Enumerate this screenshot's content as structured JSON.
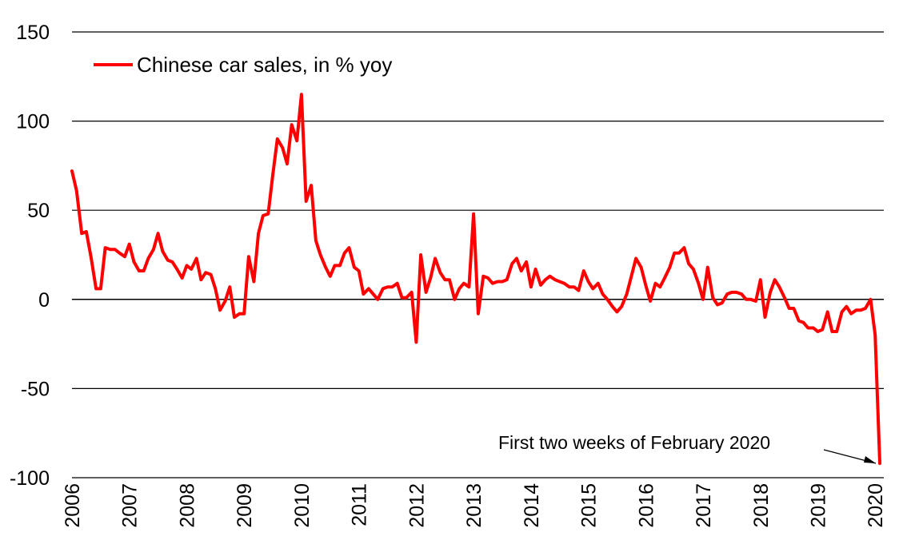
{
  "chart_data": {
    "type": "line",
    "ylim": [
      -100,
      150
    ],
    "yticks": [
      "150",
      "100",
      "50",
      "0",
      "-50",
      "-100"
    ],
    "ytick_values": [
      150,
      100,
      50,
      0,
      -50,
      -100
    ],
    "xticks": [
      "2006",
      "2007",
      "2008",
      "2009",
      "2010",
      "2011",
      "2012",
      "2013",
      "2014",
      "2015",
      "2016",
      "2017",
      "2018",
      "2019",
      "2020"
    ],
    "xtick_values": [
      2006,
      2007,
      2008,
      2009,
      2010,
      2011,
      2012,
      2013,
      2014,
      2015,
      2016,
      2017,
      2018,
      2019,
      2020
    ],
    "xlim": [
      2006,
      2020.15
    ],
    "grid": "horizontal",
    "legend_position": "top-left",
    "series": [
      {
        "name": "Chinese car sales, in % yoy",
        "color": "#ff0000",
        "x": [
          2006.0,
          2006.08,
          2006.17,
          2006.25,
          2006.33,
          2006.42,
          2006.5,
          2006.58,
          2006.67,
          2006.75,
          2006.83,
          2006.92,
          2007.0,
          2007.08,
          2007.17,
          2007.25,
          2007.33,
          2007.42,
          2007.5,
          2007.58,
          2007.67,
          2007.75,
          2007.83,
          2007.92,
          2008.0,
          2008.08,
          2008.17,
          2008.25,
          2008.33,
          2008.42,
          2008.5,
          2008.58,
          2008.67,
          2008.75,
          2008.83,
          2008.92,
          2009.0,
          2009.08,
          2009.17,
          2009.25,
          2009.33,
          2009.42,
          2009.5,
          2009.58,
          2009.67,
          2009.75,
          2009.83,
          2009.92,
          2010.0,
          2010.08,
          2010.17,
          2010.25,
          2010.33,
          2010.42,
          2010.5,
          2010.58,
          2010.67,
          2010.75,
          2010.83,
          2010.92,
          2011.0,
          2011.08,
          2011.17,
          2011.25,
          2011.33,
          2011.42,
          2011.5,
          2011.58,
          2011.67,
          2011.75,
          2011.83,
          2011.92,
          2012.0,
          2012.08,
          2012.17,
          2012.25,
          2012.33,
          2012.42,
          2012.5,
          2012.58,
          2012.67,
          2012.75,
          2012.83,
          2012.92,
          2013.0,
          2013.08,
          2013.17,
          2013.25,
          2013.33,
          2013.42,
          2013.5,
          2013.58,
          2013.67,
          2013.75,
          2013.83,
          2013.92,
          2014.0,
          2014.08,
          2014.17,
          2014.25,
          2014.33,
          2014.42,
          2014.5,
          2014.58,
          2014.67,
          2014.75,
          2014.83,
          2014.92,
          2015.0,
          2015.08,
          2015.17,
          2015.25,
          2015.33,
          2015.42,
          2015.5,
          2015.58,
          2015.67,
          2015.75,
          2015.83,
          2015.92,
          2016.0,
          2016.08,
          2016.17,
          2016.25,
          2016.33,
          2016.42,
          2016.5,
          2016.58,
          2016.67,
          2016.75,
          2016.83,
          2016.92,
          2017.0,
          2017.08,
          2017.17,
          2017.25,
          2017.33,
          2017.42,
          2017.5,
          2017.58,
          2017.67,
          2017.75,
          2017.83,
          2017.92,
          2018.0,
          2018.08,
          2018.17,
          2018.25,
          2018.33,
          2018.42,
          2018.5,
          2018.58,
          2018.67,
          2018.75,
          2018.83,
          2018.92,
          2019.0,
          2019.08,
          2019.17,
          2019.25,
          2019.33,
          2019.42,
          2019.5,
          2019.58,
          2019.67,
          2019.75,
          2019.83,
          2019.92,
          2020.0,
          2020.08
        ],
        "y": [
          72,
          61,
          37,
          38,
          24,
          6,
          6,
          29,
          28,
          28,
          26,
          24,
          31,
          21,
          16,
          16,
          23,
          28,
          37,
          27,
          22,
          21,
          17,
          12,
          19,
          17,
          23,
          11,
          15,
          14,
          6,
          -6,
          -1,
          7,
          -10,
          -8,
          -8,
          24,
          10,
          37,
          47,
          48,
          70,
          90,
          85,
          76,
          98,
          89,
          115,
          55,
          64,
          33,
          25,
          18,
          13,
          19,
          19,
          26,
          29,
          18,
          16,
          3,
          6,
          3,
          0,
          6,
          7,
          7,
          9,
          1,
          1,
          4,
          -24,
          25,
          4,
          12,
          23,
          15,
          11,
          11,
          0,
          6,
          9,
          7,
          48,
          -8,
          13,
          12,
          9,
          10,
          10,
          11,
          20,
          23,
          16,
          21,
          7,
          17,
          8,
          11,
          13,
          11,
          10,
          9,
          7,
          7,
          5,
          16,
          10,
          6,
          9,
          3,
          0,
          -4,
          -7,
          -4,
          3,
          13,
          23,
          18,
          8,
          -1,
          9,
          7,
          12,
          18,
          26,
          26,
          29,
          20,
          17,
          9,
          0,
          18,
          1,
          -3,
          -2,
          3,
          4,
          4,
          3,
          0,
          0,
          -1,
          11,
          -10,
          4,
          11,
          7,
          1,
          -5,
          -5,
          -12,
          -13,
          -16,
          -16,
          -18,
          -17,
          -7,
          -18,
          -18,
          -7,
          -4,
          -8,
          -6,
          -6,
          -5,
          0,
          -20,
          -92
        ]
      }
    ],
    "annotations": [
      {
        "text": "First two weeks of February 2020",
        "target_x": 2020.08,
        "target_y": -92
      }
    ]
  }
}
